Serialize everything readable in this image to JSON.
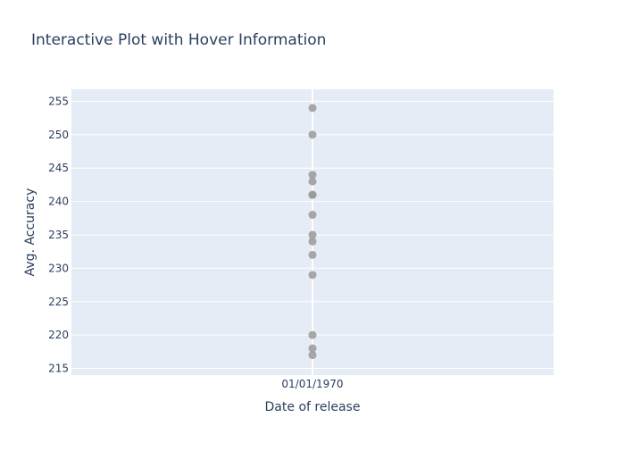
{
  "chart_data": {
    "type": "scatter",
    "title": "Interactive Plot with Hover Information",
    "xlabel": "Date of release",
    "ylabel": "Avg. Accuracy",
    "x_categories": [
      "01/01/1970"
    ],
    "y_ticks": [
      215,
      220,
      225,
      230,
      235,
      240,
      245,
      250,
      255
    ],
    "ylim": [
      214,
      256.8
    ],
    "grid": true,
    "marker_color": "#999999",
    "points": [
      {
        "x": "01/01/1970",
        "y": 254
      },
      {
        "x": "01/01/1970",
        "y": 250
      },
      {
        "x": "01/01/1970",
        "y": 244
      },
      {
        "x": "01/01/1970",
        "y": 243
      },
      {
        "x": "01/01/1970",
        "y": 241
      },
      {
        "x": "01/01/1970",
        "y": 241
      },
      {
        "x": "01/01/1970",
        "y": 238
      },
      {
        "x": "01/01/1970",
        "y": 235
      },
      {
        "x": "01/01/1970",
        "y": 234
      },
      {
        "x": "01/01/1970",
        "y": 232
      },
      {
        "x": "01/01/1970",
        "y": 229
      },
      {
        "x": "01/01/1970",
        "y": 220
      },
      {
        "x": "01/01/1970",
        "y": 218
      },
      {
        "x": "01/01/1970",
        "y": 217
      }
    ]
  }
}
